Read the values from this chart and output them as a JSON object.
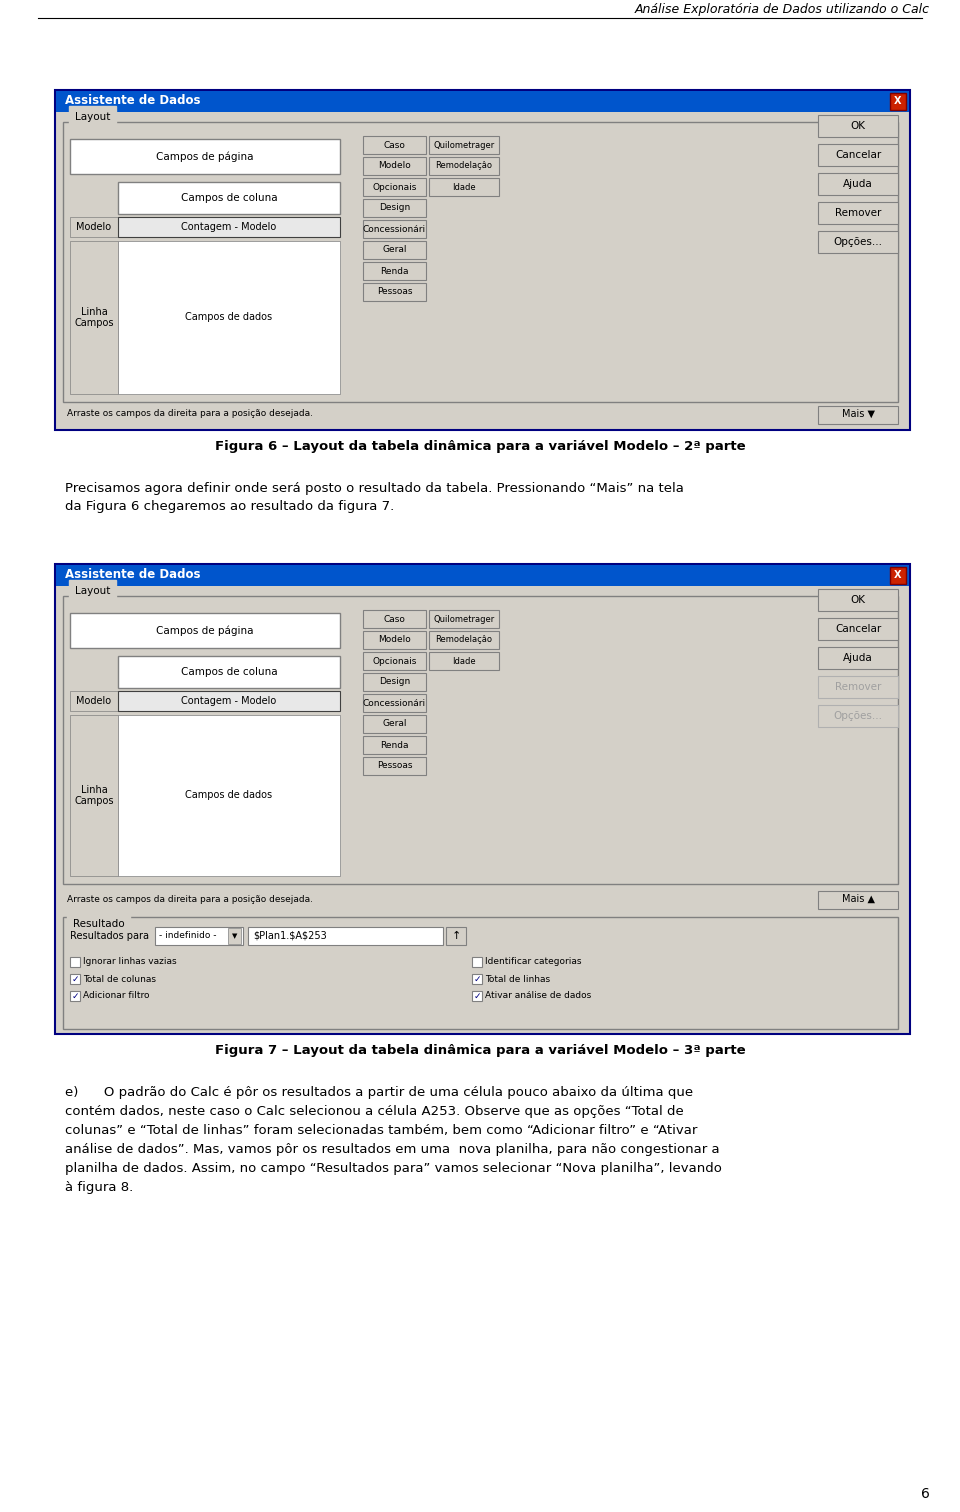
{
  "page_title": "Análise Exploratória de Dados utilizando o Calc",
  "page_number": "6",
  "bg_color": "#ffffff",
  "fig1_caption": "Figura 6 – Layout da tabela dinâmica para a variável Modelo – 2ª parte",
  "fig2_caption": "Figura 7 – Layout da tabela dinâmica para a variável Modelo – 3ª parte",
  "paragraph1a": "Precisamos agora definir onde será posto o resultado da tabela. Pressionando “Mais” na tela",
  "paragraph1b": "da Figura 6 chegaremos ao resultado da figura 7.",
  "dialog_title": "Assistente de Dados",
  "layout_label": "Layout",
  "campos_pagina": "Campos de página",
  "campos_coluna": "Campos de coluna",
  "campos_dados": "Campos de dados",
  "modelo_label": "Modelo",
  "contagem_modelo": "Contagem - Modelo",
  "linha_campos": "Linha\nCampos",
  "field_buttons_col1": [
    "Caso",
    "Modelo",
    "Opcionais",
    "Design",
    "Concessionári",
    "Geral",
    "Renda",
    "Pessoas"
  ],
  "field_buttons_col2": [
    "Quilometrager",
    "Remodelaçâo",
    "Idade",
    "",
    "",
    "",
    "",
    ""
  ],
  "right_buttons_fig1": [
    "OK",
    "Cancelar",
    "Ajuda",
    "Remover",
    "Opções..."
  ],
  "right_buttons_fig2": [
    "OK",
    "Cancelar",
    "Ajuda",
    "Remover",
    "Opções..."
  ],
  "right_buttons_fig2_disabled": [
    "Remover",
    "Opções..."
  ],
  "mais_down": "Mais ▼",
  "mais_up": "Mais ▲",
  "arraste_text": "Arraste os campos da direita para a posição desejada.",
  "resultado_label": "Resultado",
  "resultados_para_label": "Resultados para",
  "indefinido": "- indefinido -",
  "cell_ref": "$Plan1.$A$253",
  "check_options": [
    "Ignorar linhas vazias",
    "Identificar categorias",
    "Total de colunas",
    "Total de linhas",
    "Adicionar filtro",
    "Ativar análise de dados"
  ],
  "check_states": [
    false,
    false,
    true,
    true,
    true,
    true
  ],
  "lines_e": [
    "e)      O padrão do Calc é pôr os resultados a partir de uma célula pouco abaixo da última que",
    "contém dados, neste caso o Calc selecionou a célula A253. Observe que as opções “Total de",
    "colunas” e “Total de linhas” foram selecionadas também, bem como “Adicionar filtro” e “Ativar",
    "análise de dados”. Mas, vamos pôr os resultados em uma  nova planilha, para não congestionar a",
    "planilha de dados. Assim, no campo “Resultados para” vamos selecionar “Nova planilha”, levando",
    "à figura 8."
  ]
}
